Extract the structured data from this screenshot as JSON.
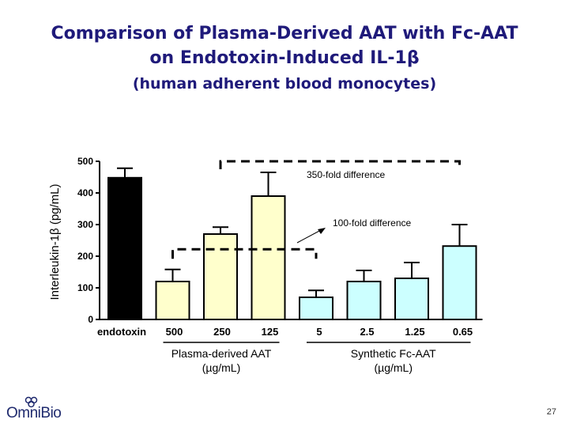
{
  "title": {
    "line1": "Comparison of Plasma-Derived AAT with Fc-AAT",
    "line2": "on Endotoxin-Induced IL-1β",
    "line3": "(human adherent blood monocytes)"
  },
  "chart_data": {
    "type": "bar",
    "ylabel": "Interleukin-1β (pg/mL)",
    "ylim": [
      0,
      500
    ],
    "yticks": [
      0,
      100,
      200,
      300,
      400,
      500
    ],
    "categories": [
      "endotoxin",
      "500",
      "250",
      "125",
      "5",
      "2.5",
      "1.25",
      "0.65"
    ],
    "values": [
      448,
      120,
      270,
      390,
      70,
      120,
      130,
      232
    ],
    "error_upper": [
      478,
      158,
      292,
      465,
      92,
      155,
      180,
      300
    ],
    "bar_colors": [
      "#000000",
      "#ffffcc",
      "#ffffcc",
      "#ffffcc",
      "#ccffff",
      "#ccffff",
      "#ccffff",
      "#ccffff"
    ],
    "groups": [
      {
        "name": "Plasma-derived AAT",
        "unit": "(µg/mL)",
        "categories": [
          "500",
          "250",
          "125"
        ]
      },
      {
        "name": "Synthetic Fc-AAT",
        "unit": "(µg/mL)",
        "categories": [
          "5",
          "2.5",
          "1.25",
          "0.65"
        ]
      }
    ],
    "annotations": [
      {
        "text": "350-fold difference",
        "from": "250",
        "to": "0.65",
        "level": 500
      },
      {
        "text": "100-fold difference",
        "from": "500",
        "to": "5",
        "level": 222
      }
    ]
  },
  "footer": {
    "logo_text": "OmniBio",
    "page_number": "27"
  }
}
